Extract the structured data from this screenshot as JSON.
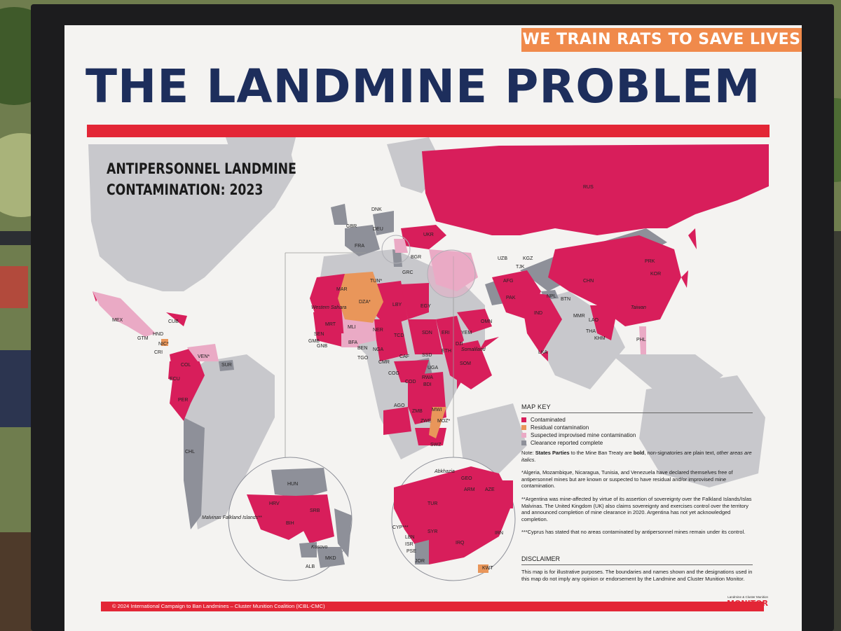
{
  "poster": {
    "slogan": "WE TRAIN RATS TO SAVE LIVES",
    "title": "THE LANDMINE PROBLEM",
    "map_title_line1": "ANTIPERSONNEL LANDMINE",
    "map_title_line2": "CONTAMINATION: 2023",
    "partial_bottom_text": "..."
  },
  "colors": {
    "contaminated": "#d81e5b",
    "residual": "#e9965a",
    "suspected": "#eaaac5",
    "clearance": "#8e9099",
    "no_data_land": "#c8c8cc",
    "sea": "#f4f3f1",
    "title_navy": "#1d2e5c",
    "accent_red": "#e32636",
    "slogan_orange": "#f08a4b"
  },
  "country_labels": [
    "RUS",
    "UKR",
    "DNK",
    "GBR",
    "DEU",
    "FRA",
    "BGR",
    "GRC",
    "TUN*",
    "DZA*",
    "MAR",
    "LBY",
    "EGY",
    "Western Sahara",
    "MRT",
    "MLI",
    "NER",
    "TCD",
    "SDN",
    "ERI",
    "YEM",
    "OMN",
    "DJI",
    "Somaliland",
    "SOM",
    "ETH",
    "SSD",
    "UGA",
    "CAF",
    "NGA",
    "BEN",
    "BFA",
    "TGO",
    "GMB",
    "GNB",
    "SEN",
    "CMR",
    "COG",
    "COD",
    "RWA",
    "BDI",
    "AGO",
    "ZMB",
    "MWI",
    "MOZ*",
    "ZWE",
    "SWZ",
    "UZB",
    "TJK",
    "KGZ",
    "AFG",
    "PAK",
    "IND",
    "NPL",
    "BTN",
    "CHN",
    "MMR",
    "LAO",
    "THA",
    "KHM",
    "LKA",
    "PRK",
    "KOR",
    "Taiwan",
    "PHL",
    "MEX",
    "CUB",
    "HND",
    "NIC*",
    "GTM",
    "CRI",
    "VEN*",
    "COL",
    "SUR",
    "ECU",
    "PER",
    "CHL",
    "Malvinas Falkland Islands**"
  ],
  "inset_balkans": [
    "HUN",
    "HRV",
    "BIH",
    "SRB",
    "Kosovo",
    "MKD",
    "ALB"
  ],
  "inset_middle_east": [
    "Abkhazia",
    "GEO",
    "ARM",
    "AZE",
    "TUR",
    "CYP***",
    "SYR",
    "LBN",
    "ISR",
    "PSE",
    "JOR",
    "IRQ",
    "IRN",
    "KWT"
  ],
  "map_key": {
    "heading": "MAP KEY",
    "items": [
      {
        "label": "Contaminated",
        "color": "#d81e5b"
      },
      {
        "label": "Residual contamination",
        "color": "#e9965a"
      },
      {
        "label": "Suspected improvised mine contamination",
        "color": "#eaaac5"
      },
      {
        "label": "Clearance reported complete",
        "color": "#8e9099"
      }
    ]
  },
  "notes": {
    "n1_bold_prefix": "Note: ",
    "n1_bold": "States Parties",
    "n1_rest": " to the Mine Ban Treaty are ",
    "n1_bold2": "bold",
    "n1_rest2": ", non-signatories are plain text, ",
    "n1_italic": "other areas are italics.",
    "n2": "*Algeria, Mozambique, Nicaragua, Tunisia, and Venezuela have declared themselves free of antipersonnel mines but are known or suspected to have residual and/or improvised mine contamination.",
    "n3": "**Argentina was mine-affected by virtue of its assertion of sovereignty over the Falkland Islands/Islas Malvinas. The United Kingdom (UK) also claims sovereignty and exercises control over the territory and announced completion of mine clearance in 2020. Argentina has not yet acknowledged completion.",
    "n4": "***Cyprus has stated that no areas contaminated by antipersonnel mines remain under its control."
  },
  "disclaimer": {
    "heading": "DISCLAIMER",
    "text": "This map is for illustrative purposes. The boundaries and names shown and the designations used in this map do not imply any opinion or endorsement by the Landmine and Cluster Munition Monitor."
  },
  "footer": {
    "copyright": "© 2024 International Campaign to Ban Landmines – Cluster Munition Coalition (ICBL-CMC)",
    "logo_small": "Landmine & Cluster Munition",
    "logo_big": "MONITOR"
  }
}
